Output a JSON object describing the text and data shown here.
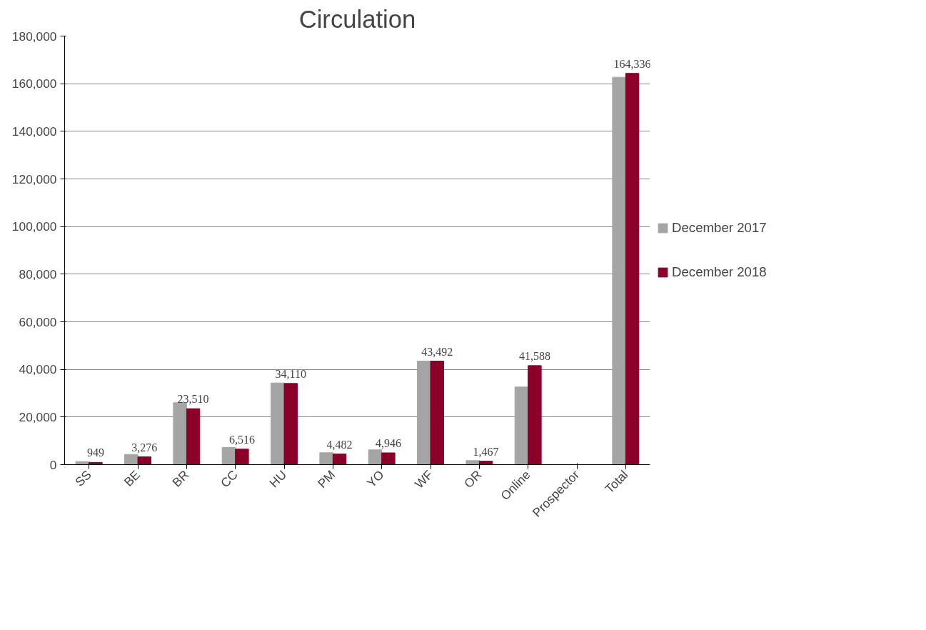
{
  "chart_data": {
    "type": "bar",
    "title": "Circulation",
    "categories": [
      "SS",
      "BE",
      "BR",
      "CC",
      "HU",
      "PM",
      "YO",
      "WF",
      "OR",
      "Online",
      "Prospector",
      "Total"
    ],
    "series": [
      {
        "name": "December 2017",
        "color": "#a5a5a5",
        "values": [
          1300,
          4300,
          26000,
          7200,
          34300,
          5000,
          6200,
          43500,
          1700,
          32600,
          null,
          162700
        ]
      },
      {
        "name": "December 2018",
        "color": "#8b0029",
        "values": [
          949,
          3276,
          23510,
          6516,
          34110,
          4482,
          4946,
          43492,
          1467,
          41588,
          null,
          164336
        ],
        "value_labels": [
          "949",
          "3,276",
          "23,510",
          "6,516",
          "34,110",
          "4,482",
          "4,946",
          "43,492",
          "1,467",
          "41,588",
          null,
          "164,336"
        ]
      }
    ],
    "ylim": [
      0,
      180000
    ],
    "yticks": [
      {
        "value": 0,
        "label": "0"
      },
      {
        "value": 20000,
        "label": "20,000"
      },
      {
        "value": 40000,
        "label": "40,000"
      },
      {
        "value": 60000,
        "label": "60,000"
      },
      {
        "value": 80000,
        "label": "80,000"
      },
      {
        "value": 100000,
        "label": "100,000"
      },
      {
        "value": 120000,
        "label": "120,000"
      },
      {
        "value": 140000,
        "label": "140,000"
      },
      {
        "value": 160000,
        "label": "160,000"
      },
      {
        "value": 180000,
        "label": "180,000"
      }
    ],
    "grid": "y",
    "legend": "right"
  }
}
